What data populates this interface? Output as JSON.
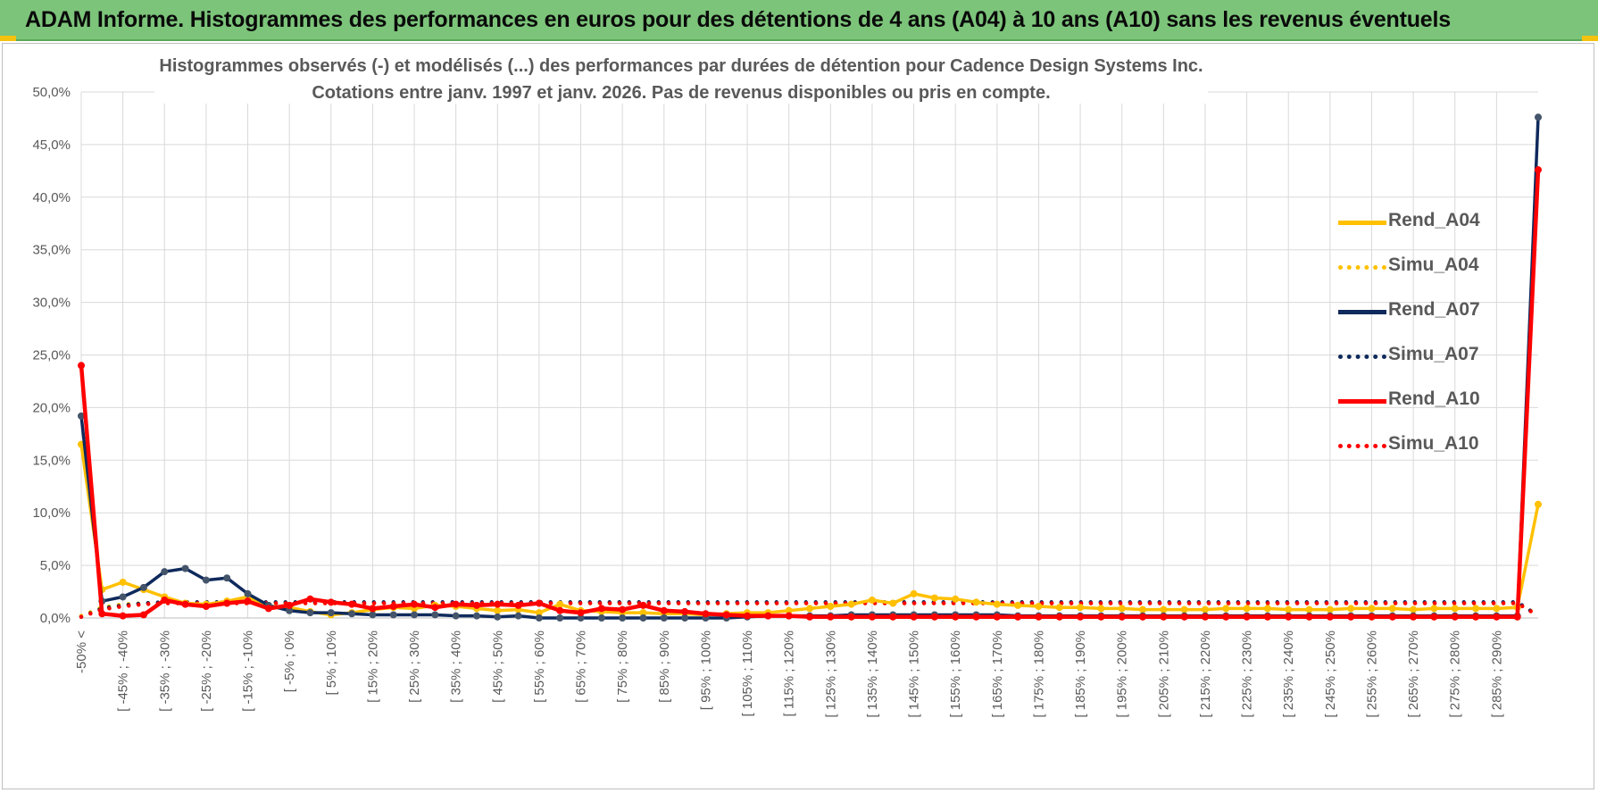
{
  "header": {
    "title": "ADAM Informe. Histogrammes des performances en euros pour des détentions de 4 ans (A04) à 10 ans (A10) sans les revenus éventuels",
    "background": "#7cc47a",
    "corner_accent": "#f4c20d"
  },
  "chart_data": {
    "type": "line",
    "title": "Histogrammes observés (-) et modélisés (...) des performances par durées de détention pour Cadence Design Systems Inc.",
    "subtitle": "Cotations entre janv. 1997 et janv. 2026. Pas de revenus disponibles ou pris en compte.",
    "xlabel": "",
    "ylabel": "",
    "ylim": [
      0,
      50
    ],
    "yticks": [
      "0,0%",
      "5,0%",
      "10,0%",
      "15,0%",
      "20,0%",
      "25,0%",
      "30,0%",
      "35,0%",
      "40,0%",
      "45,0%",
      "50,0%"
    ],
    "grid": true,
    "legend_position": "right",
    "categories": [
      "-50% <",
      "[ -50% ; -45%",
      "[ -45% ; -40%",
      "[ -40% ; -35%",
      "[ -35% ; -30%",
      "[ -30% ; -25%",
      "[ -25% ; -20%",
      "[ -20% ; -15%",
      "[ -15% ; -10%",
      "[ -10% ; -5%",
      "[ -5% ; 0%",
      "[ 0% ; 5%",
      "[ 5% ; 10%",
      "[ 10% ; 15%",
      "[ 15% ; 20%",
      "[ 20% ; 25%",
      "[ 25% ; 30%",
      "[ 30% ; 35%",
      "[ 35% ; 40%",
      "[ 40% ; 45%",
      "[ 45% ; 50%",
      "[ 50% ; 55%",
      "[ 55% ; 60%",
      "[ 60% ; 65%",
      "[ 65% ; 70%",
      "[ 70% ; 75%",
      "[ 75% ; 80%",
      "[ 80% ; 85%",
      "[ 85% ; 90%",
      "[ 90% ; 95%",
      "[ 95% ; 100%",
      "[ 100% ; 105%",
      "[ 105% ; 110%",
      "[ 110% ; 115%",
      "[ 115% ; 120%",
      "[ 120% ; 125%",
      "[ 125% ; 130%",
      "[ 130% ; 135%",
      "[ 135% ; 140%",
      "[ 140% ; 145%",
      "[ 145% ; 150%",
      "[ 150% ; 155%",
      "[ 155% ; 160%",
      "[ 160% ; 165%",
      "[ 165% ; 170%",
      "[ 170% ; 175%",
      "[ 175% ; 180%",
      "[ 180% ; 185%",
      "[ 185% ; 190%",
      "[ 190% ; 195%",
      "[ 195% ; 200%",
      "[ 200% ; 205%",
      "[ 205% ; 210%",
      "[ 210% ; 215%",
      "[ 215% ; 220%",
      "[ 220% ; 225%",
      "[ 225% ; 230%",
      "[ 230% ; 235%",
      "[ 235% ; 240%",
      "[ 240% ; 245%",
      "[ 245% ; 250%",
      "[ 250% ; 255%",
      "[ 255% ; 260%",
      "[ 260% ; 265%",
      "[ 265% ; 270%",
      "[ 270% ; 275%",
      "[ 275% ; 280%",
      "[ 280% ; 285%",
      "[ 285% ; 290%",
      "[ 290% ; 295%",
      "295% <"
    ],
    "visible_tick_labels": [
      "-50% <",
      "[ -45% ; -40%",
      "[ -35% ; -30%",
      "[ -25% ; -20%",
      "[ -15% ; -10%",
      "[ -5% ; 0%",
      "[ 5% ; 10%",
      "[ 15% ; 20%",
      "[ 25% ; 30%",
      "[ 35% ; 40%",
      "[ 45% ; 50%",
      "[ 55% ; 60%",
      "[ 65% ; 70%",
      "[ 75% ; 80%",
      "[ 85% ; 90%",
      "[ 95% ; 100%",
      "[ 105% ; 110%",
      "[ 115% ; 120%",
      "[ 125% ; 130%",
      "[ 135% ; 140%",
      "[ 145% ; 150%",
      "[ 155% ; 160%",
      "[ 165% ; 170%",
      "[ 175% ; 180%",
      "[ 185% ; 190%",
      "[ 195% ; 200%",
      "[ 205% ; 210%",
      "[ 215% ; 220%",
      "[ 225% ; 230%",
      "[ 235% ; 240%",
      "[ 245% ; 250%",
      "[ 255% ; 260%",
      "[ 265% ; 270%",
      "[ 275% ; 280%",
      "[ 285% ; 290%"
    ],
    "series": [
      {
        "name": "Rend_A04",
        "color": "#ffc000",
        "style": "solid",
        "values": [
          16.5,
          2.7,
          3.4,
          2.7,
          2.0,
          1.4,
          1.3,
          1.6,
          2.0,
          1.1,
          1.0,
          0.6,
          0.3,
          0.5,
          0.8,
          1.0,
          0.9,
          1.2,
          1.1,
          0.9,
          0.7,
          0.8,
          0.5,
          1.3,
          0.7,
          0.6,
          0.5,
          0.5,
          0.4,
          0.4,
          0.3,
          0.4,
          0.5,
          0.5,
          0.7,
          0.9,
          1.1,
          1.3,
          1.7,
          1.4,
          2.3,
          1.9,
          1.8,
          1.5,
          1.3,
          1.2,
          1.1,
          1.0,
          1.0,
          0.9,
          0.9,
          0.8,
          0.8,
          0.8,
          0.8,
          0.9,
          0.9,
          0.9,
          0.8,
          0.8,
          0.8,
          0.9,
          0.9,
          0.9,
          0.8,
          0.9,
          0.9,
          0.9,
          0.9,
          1.0,
          10.8
        ]
      },
      {
        "name": "Simu_A04",
        "color": "#ffc000",
        "style": "dotted",
        "values": [
          0.2,
          1.0,
          1.3,
          1.4,
          1.4,
          1.4,
          1.4,
          1.4,
          1.4,
          1.4,
          1.4,
          1.4,
          1.4,
          1.4,
          1.4,
          1.4,
          1.4,
          1.4,
          1.4,
          1.4,
          1.4,
          1.4,
          1.4,
          1.4,
          1.4,
          1.4,
          1.4,
          1.4,
          1.4,
          1.4,
          1.4,
          1.4,
          1.4,
          1.4,
          1.4,
          1.4,
          1.4,
          1.4,
          1.4,
          1.4,
          1.4,
          1.4,
          1.4,
          1.4,
          1.4,
          1.4,
          1.4,
          1.4,
          1.4,
          1.4,
          1.4,
          1.4,
          1.4,
          1.4,
          1.4,
          1.4,
          1.4,
          1.4,
          1.4,
          1.4,
          1.4,
          1.4,
          1.4,
          1.4,
          1.4,
          1.4,
          1.4,
          1.4,
          1.4,
          1.4,
          0.3
        ]
      },
      {
        "name": "Rend_A07",
        "color": "#0f2a5c",
        "style": "solid",
        "values": [
          19.2,
          1.6,
          2.0,
          2.9,
          4.4,
          4.7,
          3.6,
          3.8,
          2.3,
          1.2,
          0.7,
          0.5,
          0.5,
          0.4,
          0.3,
          0.3,
          0.3,
          0.3,
          0.2,
          0.2,
          0.1,
          0.2,
          0.0,
          0.0,
          0.0,
          0.0,
          0.0,
          0.0,
          0.0,
          0.0,
          0.0,
          0.0,
          0.1,
          0.2,
          0.2,
          0.2,
          0.2,
          0.3,
          0.3,
          0.3,
          0.3,
          0.3,
          0.3,
          0.3,
          0.3,
          0.2,
          0.2,
          0.2,
          0.2,
          0.2,
          0.2,
          0.2,
          0.2,
          0.2,
          0.2,
          0.2,
          0.2,
          0.2,
          0.2,
          0.2,
          0.2,
          0.2,
          0.2,
          0.2,
          0.2,
          0.2,
          0.2,
          0.2,
          0.2,
          0.2,
          47.6
        ]
      },
      {
        "name": "Simu_A07",
        "color": "#0f2a5c",
        "style": "dotted",
        "values": [
          0.1,
          0.9,
          1.2,
          1.4,
          1.5,
          1.5,
          1.5,
          1.5,
          1.5,
          1.5,
          1.5,
          1.5,
          1.5,
          1.5,
          1.5,
          1.5,
          1.5,
          1.5,
          1.5,
          1.5,
          1.5,
          1.5,
          1.5,
          1.5,
          1.5,
          1.5,
          1.5,
          1.5,
          1.5,
          1.5,
          1.5,
          1.5,
          1.5,
          1.5,
          1.5,
          1.5,
          1.5,
          1.5,
          1.5,
          1.5,
          1.5,
          1.5,
          1.5,
          1.5,
          1.5,
          1.5,
          1.5,
          1.5,
          1.5,
          1.5,
          1.5,
          1.5,
          1.5,
          1.5,
          1.5,
          1.5,
          1.5,
          1.5,
          1.5,
          1.5,
          1.5,
          1.5,
          1.5,
          1.5,
          1.5,
          1.5,
          1.5,
          1.5,
          1.5,
          1.5,
          0.2
        ]
      },
      {
        "name": "Rend_A10",
        "color": "#ff0000",
        "style": "solid",
        "values": [
          24.0,
          0.4,
          0.2,
          0.3,
          1.7,
          1.3,
          1.1,
          1.4,
          1.6,
          0.9,
          1.2,
          1.8,
          1.5,
          1.3,
          0.9,
          1.1,
          1.3,
          1.0,
          1.3,
          1.2,
          1.3,
          1.2,
          1.4,
          0.7,
          0.5,
          0.9,
          0.8,
          1.2,
          0.7,
          0.6,
          0.4,
          0.3,
          0.2,
          0.2,
          0.2,
          0.1,
          0.1,
          0.1,
          0.1,
          0.1,
          0.1,
          0.1,
          0.1,
          0.1,
          0.1,
          0.1,
          0.1,
          0.1,
          0.1,
          0.1,
          0.1,
          0.1,
          0.1,
          0.1,
          0.1,
          0.1,
          0.1,
          0.1,
          0.1,
          0.1,
          0.1,
          0.1,
          0.1,
          0.1,
          0.1,
          0.1,
          0.1,
          0.1,
          0.1,
          0.1,
          42.6
        ]
      },
      {
        "name": "Simu_A10",
        "color": "#ff0000",
        "style": "dotted",
        "values": [
          0.1,
          0.8,
          1.1,
          1.3,
          1.4,
          1.4,
          1.4,
          1.4,
          1.4,
          1.4,
          1.4,
          1.4,
          1.4,
          1.4,
          1.4,
          1.4,
          1.4,
          1.4,
          1.4,
          1.4,
          1.4,
          1.4,
          1.4,
          1.4,
          1.4,
          1.4,
          1.4,
          1.4,
          1.4,
          1.4,
          1.4,
          1.4,
          1.4,
          1.4,
          1.4,
          1.4,
          1.4,
          1.4,
          1.4,
          1.4,
          1.4,
          1.4,
          1.4,
          1.4,
          1.4,
          1.4,
          1.4,
          1.4,
          1.4,
          1.4,
          1.4,
          1.4,
          1.4,
          1.4,
          1.4,
          1.4,
          1.4,
          1.4,
          1.4,
          1.4,
          1.4,
          1.4,
          1.4,
          1.4,
          1.4,
          1.4,
          1.4,
          1.4,
          1.4,
          1.4,
          0.2
        ]
      }
    ]
  }
}
